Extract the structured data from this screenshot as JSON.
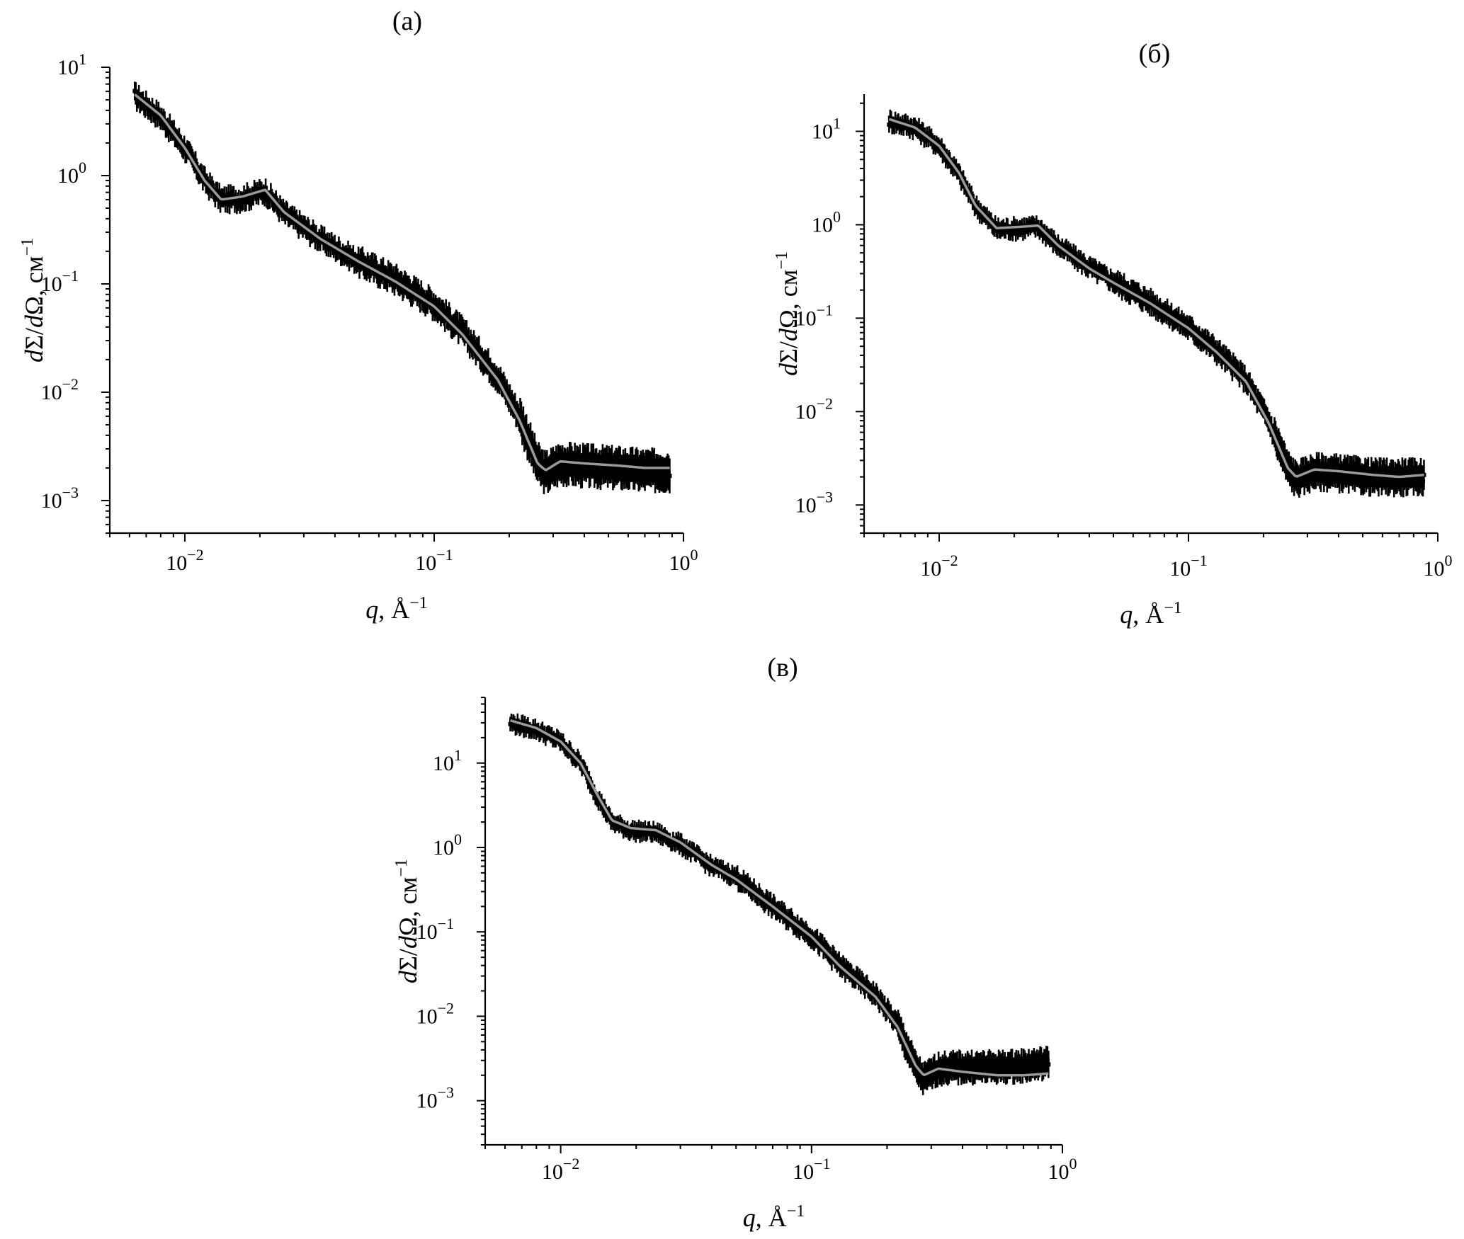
{
  "figure": {
    "panels": [
      {
        "id": "a",
        "label": "(a)"
      },
      {
        "id": "b",
        "label": "(б)"
      },
      {
        "id": "c",
        "label": "(в)"
      }
    ]
  },
  "colors": {
    "data_points": "#000000",
    "fit_curve": "#9a9a9a",
    "axes": "#000000"
  },
  "chart_data": [
    {
      "panel": "(a)",
      "type": "scatter",
      "xscale": "log",
      "yscale": "log",
      "xlabel": "q, Å⁻¹",
      "ylabel": "dΣ/dΩ, см⁻¹",
      "xlim": [
        0.005,
        1.0
      ],
      "ylim": [
        0.0005,
        10
      ],
      "xticks": [
        "10⁻²",
        "10⁻¹",
        "10⁰"
      ],
      "yticks": [
        "10¹",
        "10⁰",
        "10⁻¹",
        "10⁻²",
        "10⁻³"
      ],
      "grid": false,
      "series": [
        {
          "style": "black points with error bars",
          "x": [
            0.0063,
            0.008,
            0.01,
            0.012,
            0.014,
            0.017,
            0.021,
            0.025,
            0.035,
            0.05,
            0.07,
            0.1,
            0.13,
            0.18,
            0.22,
            0.26,
            0.28,
            0.32,
            0.4,
            0.55,
            0.7,
            0.88
          ],
          "y": [
            5.5,
            3.5,
            1.8,
            0.9,
            0.6,
            0.62,
            0.72,
            0.45,
            0.26,
            0.16,
            0.11,
            0.065,
            0.036,
            0.014,
            0.006,
            0.0022,
            0.0018,
            0.0022,
            0.0021,
            0.002,
            0.0019,
            0.0019
          ]
        },
        {
          "style": "grey fit curve",
          "x": [
            0.0063,
            0.008,
            0.01,
            0.012,
            0.014,
            0.017,
            0.021,
            0.025,
            0.035,
            0.05,
            0.07,
            0.1,
            0.13,
            0.18,
            0.22,
            0.26,
            0.28,
            0.32,
            0.4,
            0.55,
            0.7,
            0.88
          ],
          "y": [
            5.6,
            3.6,
            1.8,
            0.9,
            0.6,
            0.64,
            0.74,
            0.46,
            0.26,
            0.16,
            0.105,
            0.062,
            0.034,
            0.013,
            0.0055,
            0.0022,
            0.0019,
            0.0023,
            0.0022,
            0.0021,
            0.002,
            0.002
          ]
        }
      ]
    },
    {
      "panel": "(б)",
      "type": "scatter",
      "xscale": "log",
      "yscale": "log",
      "xlabel": "q, Å⁻¹",
      "ylabel": "dΣ/dΩ, см⁻¹",
      "xlim": [
        0.005,
        1.0
      ],
      "ylim": [
        0.0005,
        25
      ],
      "xticks": [
        "10⁻²",
        "10⁻¹",
        "10⁰"
      ],
      "yticks": [
        "10¹",
        "10⁰",
        "10⁻¹",
        "10⁻²",
        "10⁻³"
      ],
      "grid": false,
      "series": [
        {
          "style": "black points with error bars",
          "x": [
            0.0063,
            0.008,
            0.01,
            0.012,
            0.014,
            0.017,
            0.021,
            0.025,
            0.03,
            0.04,
            0.05,
            0.07,
            0.1,
            0.13,
            0.17,
            0.21,
            0.25,
            0.27,
            0.32,
            0.4,
            0.55,
            0.7,
            0.88
          ],
          "y": [
            13,
            11,
            7,
            3.5,
            1.6,
            0.9,
            0.92,
            0.95,
            0.6,
            0.35,
            0.25,
            0.15,
            0.08,
            0.045,
            0.022,
            0.008,
            0.0025,
            0.0019,
            0.0023,
            0.0022,
            0.002,
            0.002,
            0.002
          ]
        },
        {
          "style": "grey fit curve",
          "x": [
            0.0063,
            0.008,
            0.01,
            0.012,
            0.014,
            0.017,
            0.021,
            0.025,
            0.03,
            0.04,
            0.05,
            0.07,
            0.1,
            0.13,
            0.17,
            0.21,
            0.25,
            0.27,
            0.32,
            0.4,
            0.55,
            0.7,
            0.88
          ],
          "y": [
            13.5,
            11,
            7,
            3.6,
            1.6,
            0.92,
            0.95,
            0.98,
            0.6,
            0.34,
            0.24,
            0.145,
            0.078,
            0.043,
            0.021,
            0.0075,
            0.0025,
            0.002,
            0.0024,
            0.0023,
            0.0021,
            0.002,
            0.0021
          ]
        }
      ]
    },
    {
      "panel": "(в)",
      "type": "scatter",
      "xscale": "log",
      "yscale": "log",
      "xlabel": "q, Å⁻¹",
      "ylabel": "dΣ/dΩ, см⁻¹",
      "xlim": [
        0.005,
        1.0
      ],
      "ylim": [
        0.0003,
        60
      ],
      "xticks": [
        "10⁻²",
        "10⁻¹",
        "10⁰"
      ],
      "yticks": [
        "10¹",
        "10⁰",
        "10⁻¹",
        "10⁻²",
        "10⁻³"
      ],
      "grid": false,
      "series": [
        {
          "style": "black points with error bars",
          "x": [
            0.0063,
            0.008,
            0.01,
            0.012,
            0.014,
            0.016,
            0.019,
            0.024,
            0.03,
            0.04,
            0.05,
            0.07,
            0.1,
            0.13,
            0.18,
            0.22,
            0.26,
            0.28,
            0.32,
            0.4,
            0.55,
            0.7,
            0.88
          ],
          "y": [
            30,
            25,
            18,
            10,
            4,
            2,
            1.6,
            1.5,
            1.1,
            0.6,
            0.45,
            0.2,
            0.09,
            0.04,
            0.018,
            0.008,
            0.0025,
            0.0018,
            0.0024,
            0.0025,
            0.0025,
            0.0026,
            0.0028
          ]
        },
        {
          "style": "grey fit curve",
          "x": [
            0.0063,
            0.008,
            0.01,
            0.012,
            0.014,
            0.016,
            0.019,
            0.024,
            0.03,
            0.04,
            0.05,
            0.07,
            0.1,
            0.13,
            0.18,
            0.22,
            0.26,
            0.28,
            0.32,
            0.4,
            0.55,
            0.7,
            0.88
          ],
          "y": [
            32,
            26,
            18,
            10,
            4.2,
            2.1,
            1.7,
            1.6,
            1.15,
            0.62,
            0.42,
            0.2,
            0.088,
            0.039,
            0.017,
            0.0075,
            0.0026,
            0.002,
            0.0024,
            0.0022,
            0.002,
            0.002,
            0.0021
          ]
        }
      ]
    }
  ]
}
